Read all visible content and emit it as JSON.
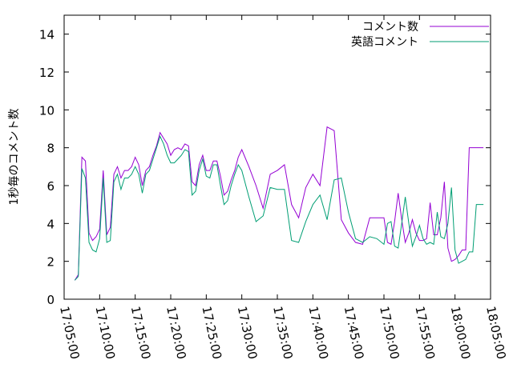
{
  "chart_data": {
    "type": "line",
    "ylabel": "1秒毎のコメント数",
    "xlabel": "",
    "title": "",
    "xlim": [
      "17:05:00",
      "18:05:00"
    ],
    "ylim": [
      0,
      15
    ],
    "x_ticks": [
      "17:05:00",
      "17:10:00",
      "17:15:00",
      "17:20:00",
      "17:25:00",
      "17:30:00",
      "17:35:00",
      "17:40:00",
      "17:45:00",
      "17:50:00",
      "17:55:00",
      "18:00:00",
      "18:05:00"
    ],
    "y_ticks": [
      "0",
      "2",
      "4",
      "6",
      "8",
      "10",
      "12",
      "14"
    ],
    "grid": false,
    "legend_position": "top-right",
    "x": [
      "17:06:30",
      "17:07:00",
      "17:07:30",
      "17:08:00",
      "17:08:30",
      "17:09:00",
      "17:09:30",
      "17:10:00",
      "17:10:30",
      "17:11:00",
      "17:11:30",
      "17:12:00",
      "17:12:30",
      "17:13:00",
      "17:13:30",
      "17:14:00",
      "17:14:30",
      "17:15:00",
      "17:15:30",
      "17:16:00",
      "17:16:30",
      "17:17:00",
      "17:17:30",
      "17:18:00",
      "17:18:30",
      "17:19:00",
      "17:19:30",
      "17:20:00",
      "17:20:30",
      "17:21:00",
      "17:21:30",
      "17:22:00",
      "17:22:30",
      "17:23:00",
      "17:23:30",
      "17:24:00",
      "17:24:30",
      "17:25:00",
      "17:25:30",
      "17:26:00",
      "17:26:30",
      "17:27:00",
      "17:27:30",
      "17:28:00",
      "17:28:30",
      "17:29:00",
      "17:29:30",
      "17:30:00",
      "17:31:00",
      "17:32:00",
      "17:33:00",
      "17:34:00",
      "17:35:00",
      "17:36:00",
      "17:37:00",
      "17:38:00",
      "17:39:00",
      "17:40:00",
      "17:41:00",
      "17:42:00",
      "17:43:00",
      "17:44:00",
      "17:45:00",
      "17:46:00",
      "17:47:00",
      "17:48:00",
      "17:49:00",
      "17:50:00",
      "17:50:30",
      "17:51:00",
      "17:51:30",
      "17:52:00",
      "17:52:30",
      "17:53:00",
      "17:53:30",
      "17:54:00",
      "17:54:30",
      "17:55:00",
      "17:55:30",
      "17:56:00",
      "17:56:30",
      "17:57:00",
      "17:57:30",
      "17:58:00",
      "17:58:30",
      "17:59:00",
      "17:59:30",
      "18:00:00",
      "18:00:30",
      "18:01:00",
      "18:01:30",
      "18:02:00",
      "18:02:30",
      "18:03:00",
      "18:03:30",
      "18:04:00"
    ],
    "series": [
      {
        "name": "コメント数",
        "color": "#9400d3",
        "values": [
          1.0,
          1.3,
          7.5,
          7.3,
          3.5,
          3.1,
          3.3,
          3.7,
          6.8,
          3.4,
          3.8,
          6.6,
          7.0,
          6.4,
          6.8,
          6.8,
          7.0,
          7.5,
          7.1,
          6.0,
          6.8,
          7.0,
          7.6,
          8.1,
          8.8,
          8.5,
          8.2,
          7.6,
          7.9,
          8.0,
          7.9,
          8.2,
          8.1,
          6.2,
          6.0,
          7.1,
          7.6,
          6.8,
          6.8,
          7.3,
          7.3,
          6.5,
          5.5,
          5.7,
          6.3,
          6.8,
          7.5,
          7.9,
          7.0,
          6.0,
          4.8,
          6.6,
          6.8,
          7.1,
          5.0,
          4.3,
          5.9,
          6.6,
          6.0,
          9.1,
          8.9,
          4.2,
          3.5,
          3.0,
          2.9,
          4.3,
          4.3,
          4.3,
          3.0,
          2.9,
          4.1,
          5.6,
          4.2,
          3.0,
          3.5,
          4.2,
          3.5,
          3.1,
          3.1,
          3.2,
          5.1,
          3.4,
          3.4,
          4.3,
          6.2,
          2.7,
          2.0,
          2.1,
          2.3,
          2.6,
          2.6,
          8.0,
          8.0,
          8.0,
          8.0,
          8.0
        ]
      },
      {
        "name": "英語コメント",
        "color": "#009e73",
        "values": [
          1.0,
          1.2,
          6.9,
          6.4,
          3.0,
          2.6,
          2.5,
          3.2,
          6.4,
          3.0,
          3.1,
          6.2,
          6.6,
          5.8,
          6.4,
          6.4,
          6.6,
          7.0,
          6.6,
          5.6,
          6.6,
          6.8,
          7.4,
          8.0,
          8.6,
          8.2,
          7.6,
          7.2,
          7.2,
          7.4,
          7.6,
          7.9,
          7.8,
          5.5,
          5.7,
          6.8,
          7.4,
          6.5,
          6.4,
          7.1,
          7.1,
          6.0,
          5.0,
          5.2,
          6.0,
          6.6,
          7.1,
          6.8,
          5.4,
          4.1,
          4.4,
          5.9,
          5.8,
          5.8,
          3.1,
          3.0,
          4.1,
          5.0,
          5.5,
          4.2,
          6.3,
          6.4,
          4.6,
          3.2,
          3.0,
          3.3,
          3.2,
          2.9,
          4.0,
          4.1,
          2.8,
          2.7,
          4.0,
          5.4,
          4.0,
          2.8,
          3.3,
          3.9,
          3.2,
          2.9,
          3.0,
          2.9,
          4.6,
          3.3,
          3.2,
          4.0,
          5.9,
          2.6,
          1.9,
          2.0,
          2.1,
          2.5,
          2.5,
          5.0,
          5.0,
          5.0
        ]
      }
    ]
  }
}
